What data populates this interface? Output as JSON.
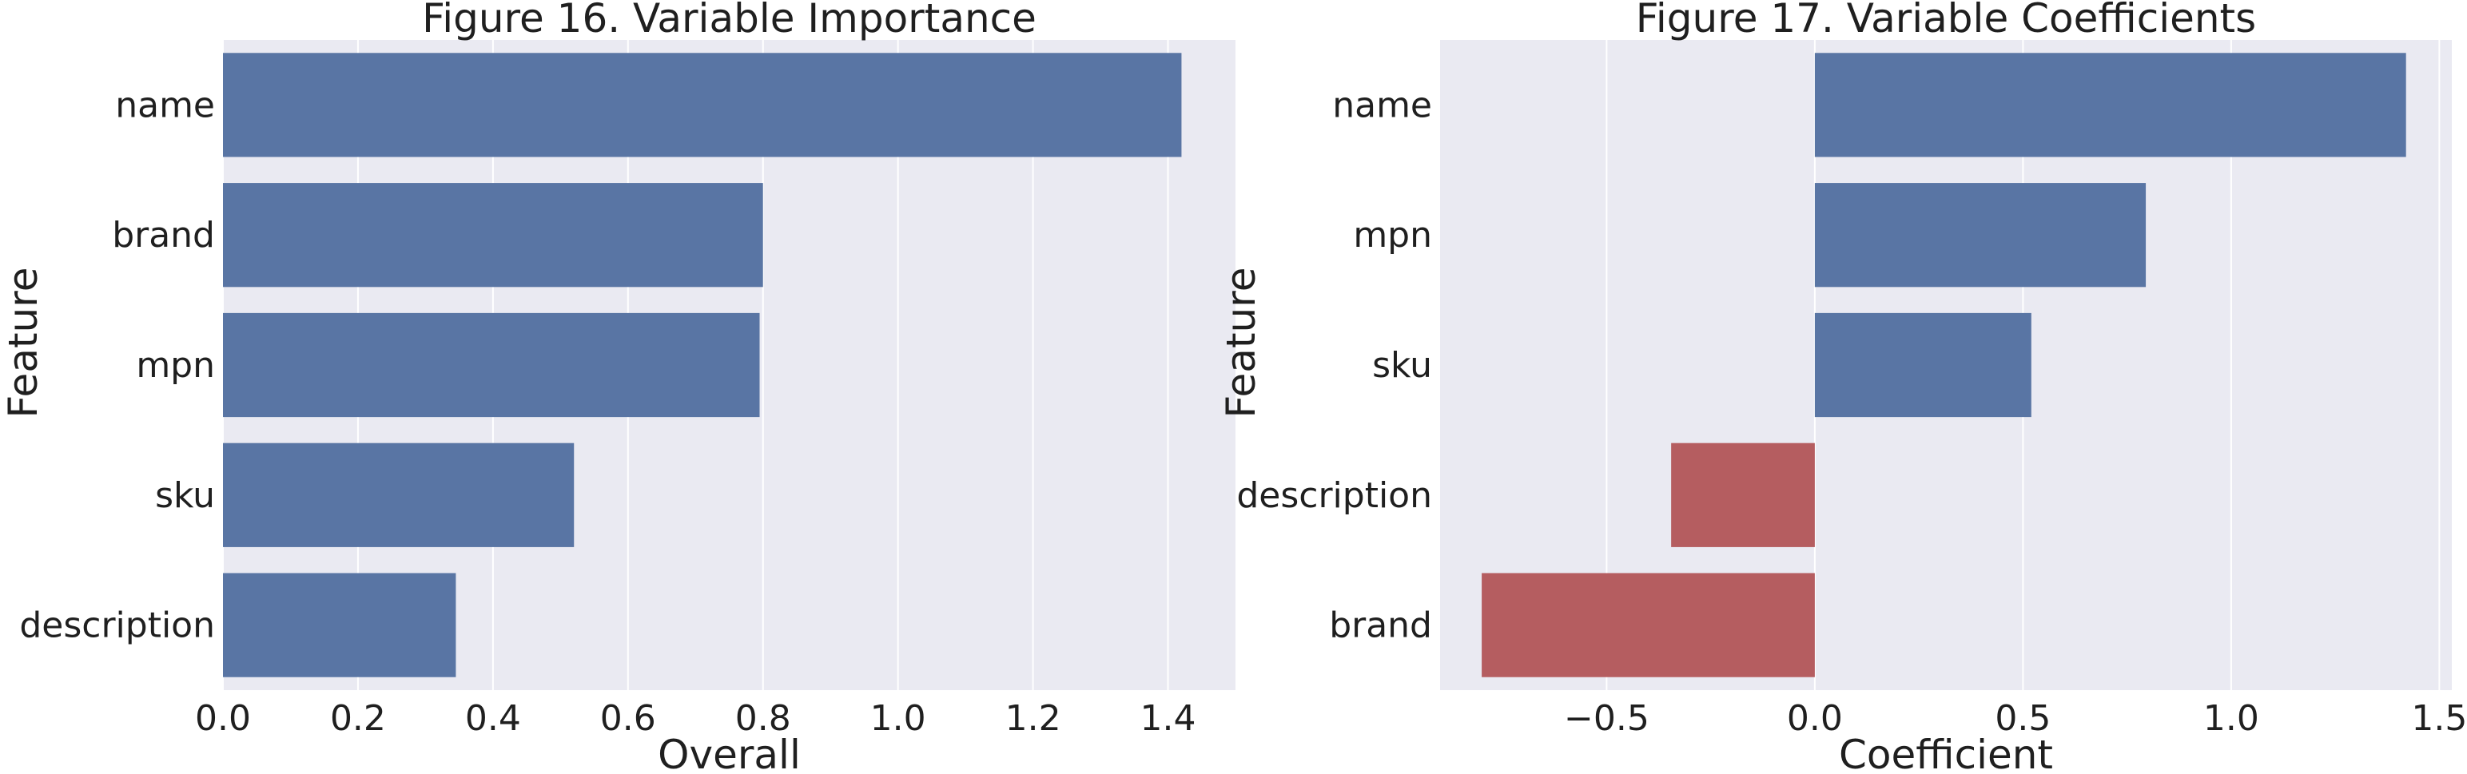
{
  "chart_data": [
    {
      "type": "bar",
      "orientation": "horizontal",
      "title": "Figure 16. Variable Importance",
      "xlabel": "Overall",
      "ylabel": "Feature",
      "categories": [
        "name",
        "brand",
        "mpn",
        "sku",
        "description"
      ],
      "values": [
        1.42,
        0.8,
        0.795,
        0.52,
        0.345
      ],
      "xlim": [
        0.0,
        1.5
      ],
      "xticks": [
        0.0,
        0.2,
        0.4,
        0.6,
        0.8,
        1.0,
        1.2,
        1.4
      ],
      "xtick_labels": [
        "0.0",
        "0.2",
        "0.4",
        "0.6",
        "0.8",
        "1.0",
        "1.2",
        "1.4"
      ],
      "grid": true,
      "background": "#eaeaf2",
      "bar_color": "#5975a4"
    },
    {
      "type": "bar",
      "orientation": "horizontal",
      "title": "Figure 17. Variable Coefficients",
      "xlabel": "Coefficient",
      "ylabel": "Feature",
      "categories": [
        "name",
        "mpn",
        "sku",
        "description",
        "brand"
      ],
      "values": [
        1.42,
        0.795,
        0.52,
        -0.345,
        -0.8
      ],
      "xlim": [
        -0.9,
        1.53
      ],
      "xticks": [
        -0.5,
        0.0,
        0.5,
        1.0,
        1.5
      ],
      "xtick_labels": [
        "−0.5",
        "0.0",
        "0.5",
        "1.0",
        "1.5"
      ],
      "grid": true,
      "background": "#eaeaf2",
      "positive_color": "#5975a4",
      "negative_color": "#b55d60"
    }
  ]
}
